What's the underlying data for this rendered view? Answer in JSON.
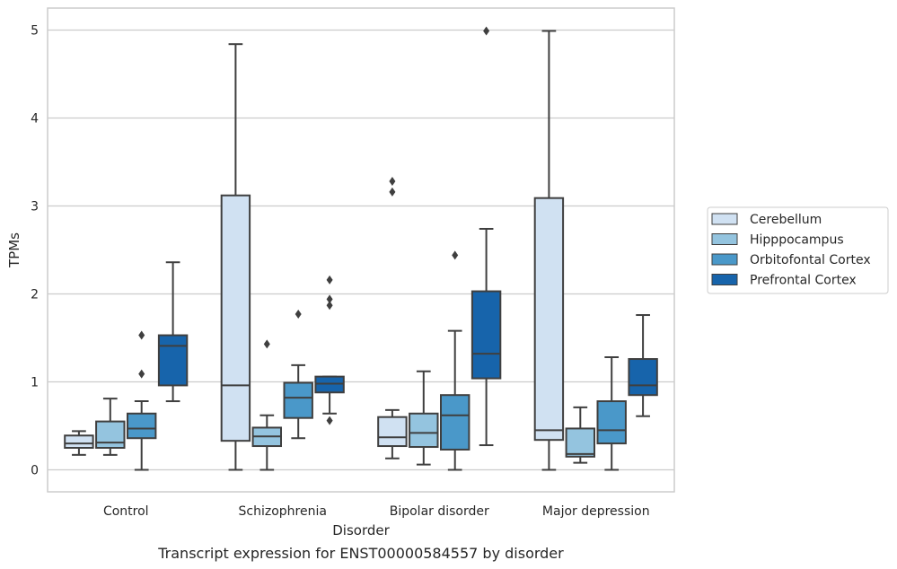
{
  "caption": "Transcript expression for ENST00000584557 by disorder",
  "chart_data": {
    "type": "box",
    "xlabel": "Disorder",
    "ylabel": "TPMs",
    "ylim": [
      -0.25,
      5.25
    ],
    "yticks": [
      0,
      1,
      2,
      3,
      4,
      5
    ],
    "grid": "horizontal",
    "legend_position": "right",
    "categories": [
      "Control",
      "Schizophrenia",
      "Bipolar disorder",
      "Major depression"
    ],
    "series": [
      {
        "name": "Cerebellum",
        "color": "#d0e1f2",
        "boxes": [
          {
            "whisker_low": 0.17,
            "q1": 0.25,
            "median": 0.3,
            "q3": 0.39,
            "whisker_high": 0.44,
            "outliers": []
          },
          {
            "whisker_low": 0.0,
            "q1": 0.33,
            "median": 0.96,
            "q3": 3.12,
            "whisker_high": 4.84,
            "outliers": []
          },
          {
            "whisker_low": 0.13,
            "q1": 0.27,
            "median": 0.37,
            "q3": 0.6,
            "whisker_high": 0.68,
            "outliers": [
              3.16,
              3.28
            ]
          },
          {
            "whisker_low": 0.0,
            "q1": 0.34,
            "median": 0.45,
            "q3": 3.09,
            "whisker_high": 4.99,
            "outliers": []
          }
        ]
      },
      {
        "name": "Hipppocampus",
        "color": "#94c4df",
        "boxes": [
          {
            "whisker_low": 0.17,
            "q1": 0.25,
            "median": 0.31,
            "q3": 0.55,
            "whisker_high": 0.81,
            "outliers": []
          },
          {
            "whisker_low": 0.0,
            "q1": 0.27,
            "median": 0.38,
            "q3": 0.48,
            "whisker_high": 0.62,
            "outliers": [
              1.43
            ]
          },
          {
            "whisker_low": 0.06,
            "q1": 0.26,
            "median": 0.42,
            "q3": 0.64,
            "whisker_high": 1.12,
            "outliers": []
          },
          {
            "whisker_low": 0.08,
            "q1": 0.15,
            "median": 0.18,
            "q3": 0.47,
            "whisker_high": 0.71,
            "outliers": []
          }
        ]
      },
      {
        "name": "Orbitofontal Cortex",
        "color": "#4a98c9",
        "boxes": [
          {
            "whisker_low": 0.0,
            "q1": 0.36,
            "median": 0.47,
            "q3": 0.64,
            "whisker_high": 0.78,
            "outliers": [
              1.09,
              1.53
            ]
          },
          {
            "whisker_low": 0.36,
            "q1": 0.59,
            "median": 0.82,
            "q3": 0.99,
            "whisker_high": 1.19,
            "outliers": [
              1.77
            ]
          },
          {
            "whisker_low": 0.0,
            "q1": 0.23,
            "median": 0.62,
            "q3": 0.85,
            "whisker_high": 1.58,
            "outliers": [
              2.44
            ]
          },
          {
            "whisker_low": 0.0,
            "q1": 0.3,
            "median": 0.45,
            "q3": 0.78,
            "whisker_high": 1.28,
            "outliers": []
          }
        ]
      },
      {
        "name": "Prefrontal Cortex",
        "color": "#1764ab",
        "boxes": [
          {
            "whisker_low": 0.78,
            "q1": 0.96,
            "median": 1.41,
            "q3": 1.53,
            "whisker_high": 2.36,
            "outliers": []
          },
          {
            "whisker_low": 0.64,
            "q1": 0.88,
            "median": 0.98,
            "q3": 1.06,
            "whisker_high": 1.06,
            "outliers": [
              0.56,
              1.87,
              1.94,
              2.16
            ]
          },
          {
            "whisker_low": 0.28,
            "q1": 1.04,
            "median": 1.32,
            "q3": 2.03,
            "whisker_high": 2.74,
            "outliers": [
              4.99
            ]
          },
          {
            "whisker_low": 0.61,
            "q1": 0.85,
            "median": 0.96,
            "q3": 1.26,
            "whisker_high": 1.76,
            "outliers": []
          }
        ]
      }
    ]
  }
}
